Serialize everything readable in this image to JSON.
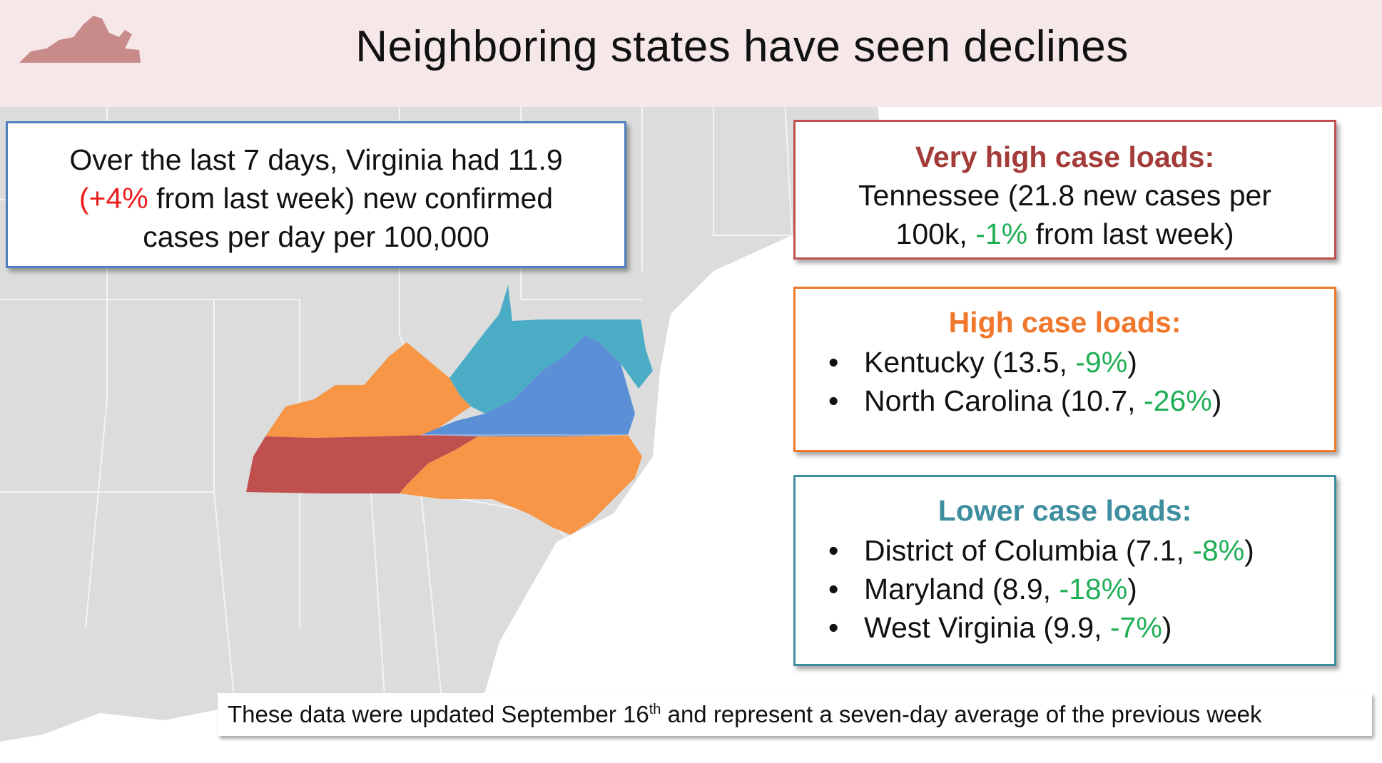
{
  "header": {
    "title": "Neighboring states have seen declines"
  },
  "summary": {
    "line1": "Over the last 7 days, Virginia had 11.9",
    "change": "(+4%",
    "line2_rest": " from last week) new confirmed",
    "line3": "cases per day per 100,000"
  },
  "very_high": {
    "heading": "Very high case loads:",
    "line1": "Tennessee (21.8 new cases per",
    "line2_pre": "100k, ",
    "line2_change": "-1%",
    "line2_post": " from last week)"
  },
  "high": {
    "heading": "High case loads:",
    "items": [
      {
        "bullet": "•",
        "pre": "Kentucky (13.5, ",
        "change": "-9%",
        "post": ")"
      },
      {
        "bullet": "•",
        "pre": "North Carolina (10.7, ",
        "change": "-26%",
        "post": ")"
      }
    ]
  },
  "lower": {
    "heading": "Lower case loads:",
    "items": [
      {
        "bullet": "•",
        "pre": "District of Columbia (7.1, ",
        "change": "-8%",
        "post": ")"
      },
      {
        "bullet": "•",
        "pre": "Maryland (8.9, ",
        "change": "-18%",
        "post": ")"
      },
      {
        "bullet": "•",
        "pre": "West Virginia (9.9, ",
        "change": "-7%",
        "post": ")"
      }
    ]
  },
  "footer": {
    "pre": "These data were updated September 16",
    "sup": "th",
    "post": " and represent a seven-day average of the previous week"
  },
  "colors": {
    "very_high": "#c0504d",
    "high": "#f79646",
    "lower_wv": "#4bacc6",
    "virginia": "#5b8fd6",
    "increase": "#ee1c1c",
    "decrease": "#1fae55",
    "land": "#dcdcdc",
    "header_band": "#f6e8e9"
  },
  "map_regions": [
    {
      "name": "Virginia",
      "category": "highlight"
    },
    {
      "name": "West Virginia",
      "category": "lower"
    },
    {
      "name": "Maryland",
      "category": "lower"
    },
    {
      "name": "District of Columbia",
      "category": "lower"
    },
    {
      "name": "Kentucky",
      "category": "high"
    },
    {
      "name": "North Carolina",
      "category": "high"
    },
    {
      "name": "Tennessee",
      "category": "very_high"
    }
  ]
}
